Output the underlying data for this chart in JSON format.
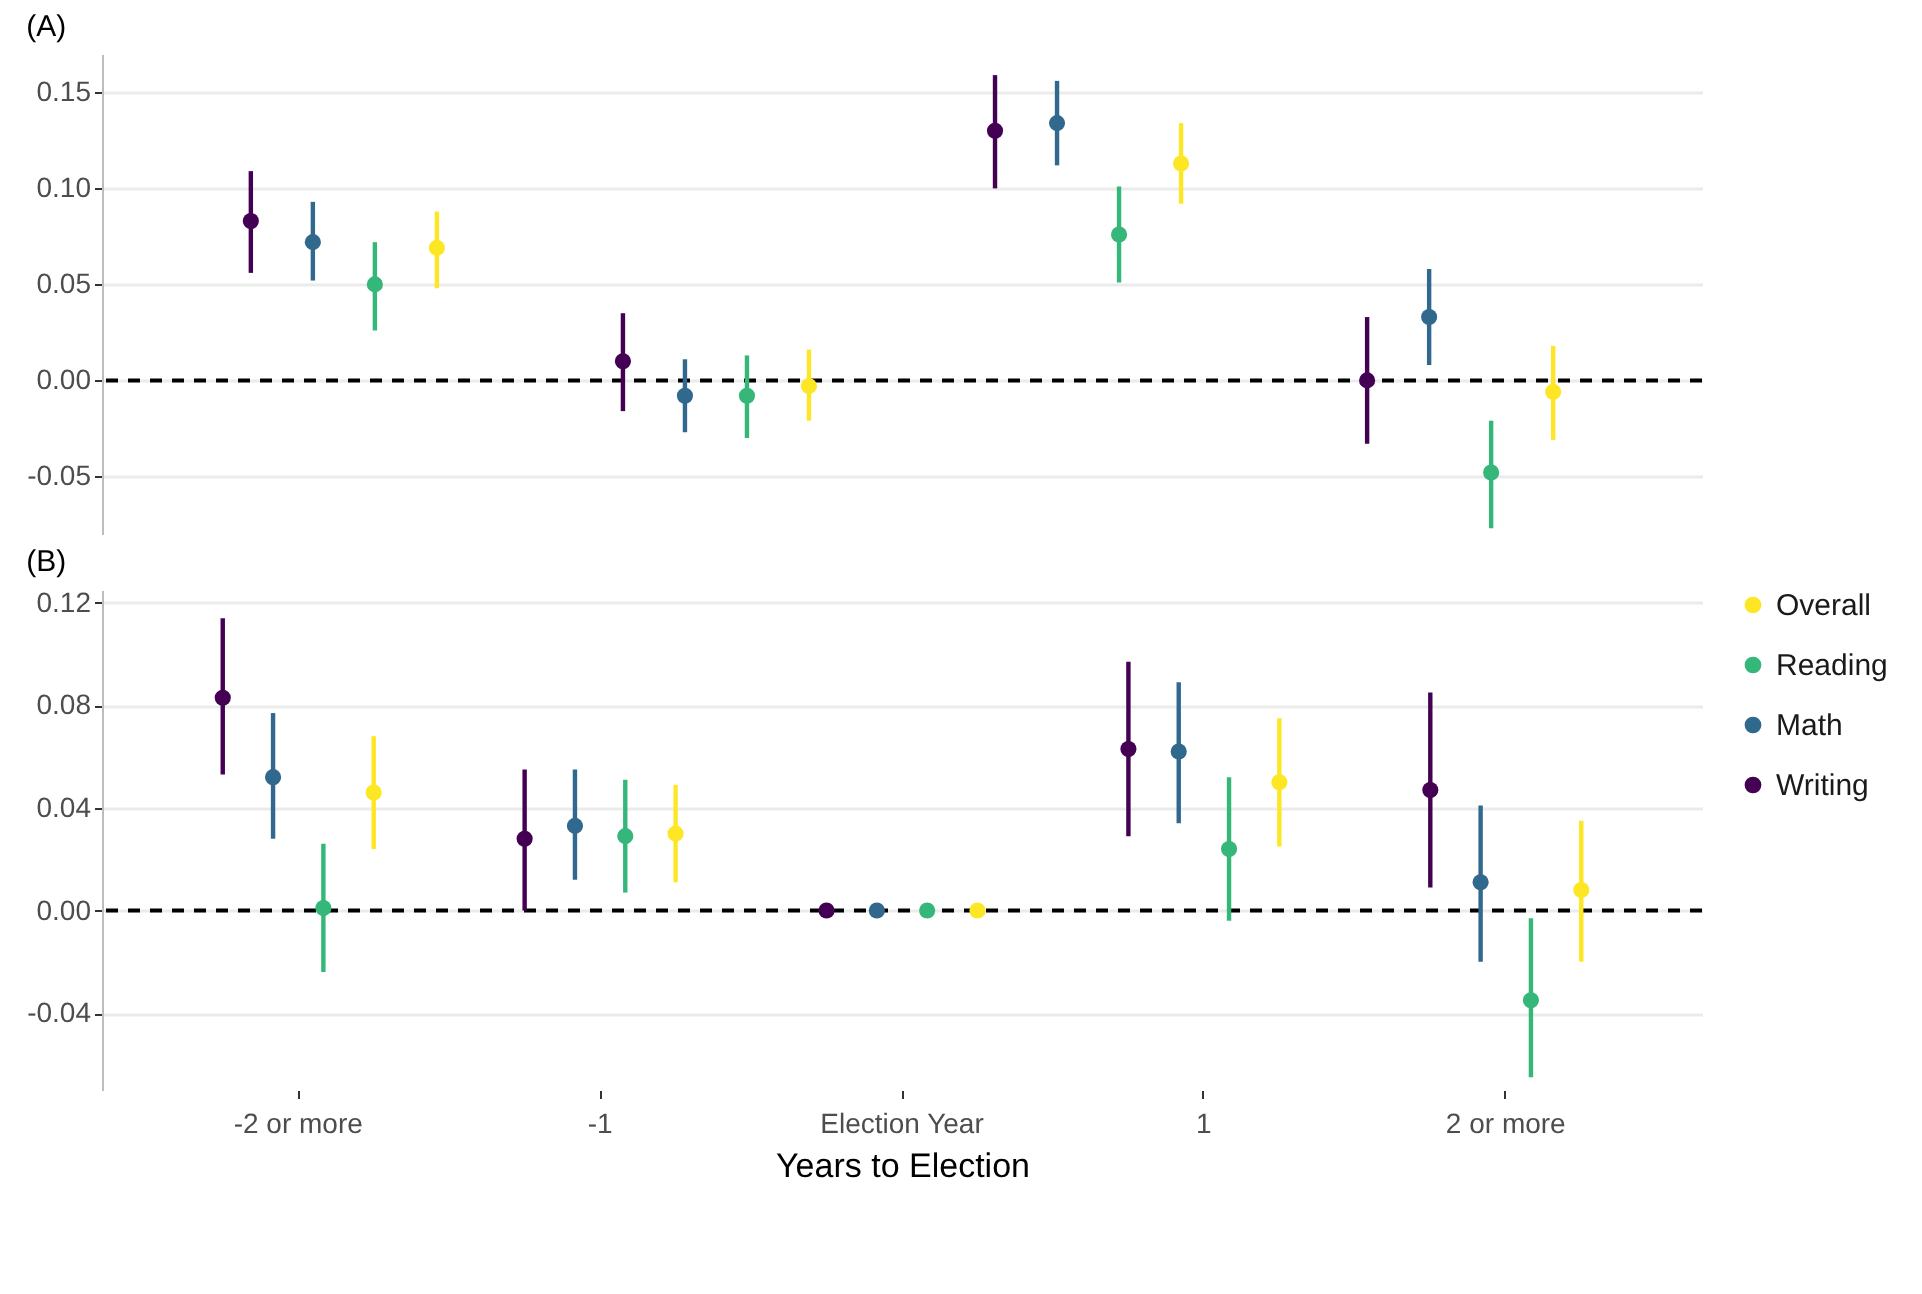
{
  "chart_data": [
    {
      "type": "scatter",
      "title": "(A)",
      "categories": [
        null,
        null,
        null,
        null
      ],
      "tick_labels": "y",
      "ylim": [
        -0.08,
        0.17
      ],
      "yticks": [
        {
          "value": -0.05,
          "label": "-0.05"
        },
        {
          "value": 0,
          "label": "0.00"
        },
        {
          "value": 0.05,
          "label": "0.05"
        },
        {
          "value": 0.1,
          "label": "0.10"
        },
        {
          "value": 0.15,
          "label": "0.15"
        }
      ],
      "grid": "y",
      "marker": "circle",
      "ref_lines": [
        {
          "axis": "y",
          "value": 0,
          "color": "#000000",
          "line_style": "dashed"
        }
      ],
      "series": [
        {
          "color": "#440154",
          "values": [
            0.083,
            0.01,
            0.13,
            0.0
          ],
          "errors": [
            [
              0.056,
              0.109
            ],
            [
              -0.016,
              0.035
            ],
            [
              0.1,
              0.159
            ],
            [
              -0.033,
              0.033
            ]
          ]
        },
        {
          "color": "#31688e",
          "values": [
            0.072,
            -0.008,
            0.134,
            0.033
          ],
          "errors": [
            [
              0.052,
              0.093
            ],
            [
              -0.027,
              0.011
            ],
            [
              0.112,
              0.156
            ],
            [
              0.008,
              0.058
            ]
          ]
        },
        {
          "color": "#35b779",
          "values": [
            0.05,
            -0.008,
            0.076,
            -0.048
          ],
          "errors": [
            [
              0.026,
              0.072
            ],
            [
              -0.03,
              0.013
            ],
            [
              0.051,
              0.101
            ],
            [
              -0.077,
              -0.021
            ]
          ]
        },
        {
          "color": "#fde725",
          "values": [
            0.069,
            -0.003,
            0.113,
            -0.006
          ],
          "errors": [
            [
              0.048,
              0.088
            ],
            [
              -0.021,
              0.016
            ],
            [
              0.092,
              0.134
            ],
            [
              -0.031,
              0.018
            ]
          ]
        }
      ]
    },
    {
      "type": "scatter",
      "title": "(B)",
      "xlabel": "Years to Election",
      "categories": [
        "-2 or more",
        "-1",
        "Election Year",
        "1",
        "2 or more"
      ],
      "ylim": [
        -0.07,
        0.125
      ],
      "yticks": [
        {
          "value": -0.04,
          "label": "-0.04"
        },
        {
          "value": 0,
          "label": "0.00"
        },
        {
          "value": 0.04,
          "label": "0.04"
        },
        {
          "value": 0.08,
          "label": "0.08"
        },
        {
          "value": 0.12,
          "label": "0.12"
        }
      ],
      "grid": "y",
      "marker": "circle",
      "legend": "right",
      "ref_lines": [
        {
          "axis": "y",
          "value": 0,
          "color": "#000000",
          "line_style": "dashed"
        }
      ],
      "series": [
        {
          "name": "Writing",
          "color": "#440154",
          "values": [
            0.083,
            0.028,
            0,
            0.063,
            0.047
          ],
          "errors": [
            [
              0.053,
              0.114
            ],
            [
              0.0,
              0.055
            ],
            null,
            [
              0.029,
              0.097
            ],
            [
              0.009,
              0.085
            ]
          ]
        },
        {
          "name": "Math",
          "color": "#31688e",
          "values": [
            0.052,
            0.033,
            0,
            0.062,
            0.011
          ],
          "errors": [
            [
              0.028,
              0.077
            ],
            [
              0.012,
              0.055
            ],
            null,
            [
              0.034,
              0.089
            ],
            [
              -0.02,
              0.041
            ]
          ]
        },
        {
          "name": "Reading",
          "color": "#35b779",
          "values": [
            0.001,
            0.029,
            0,
            0.024,
            -0.035
          ],
          "errors": [
            [
              -0.024,
              0.026
            ],
            [
              0.007,
              0.051
            ],
            null,
            [
              -0.004,
              0.052
            ],
            [
              -0.065,
              -0.003
            ]
          ]
        },
        {
          "name": "Overall",
          "color": "#fde725",
          "values": [
            0.046,
            0.03,
            0,
            0.05,
            0.008
          ],
          "errors": [
            [
              0.024,
              0.068
            ],
            [
              0.011,
              0.049
            ],
            null,
            [
              0.025,
              0.075
            ],
            [
              -0.02,
              0.035
            ]
          ]
        }
      ]
    }
  ]
}
